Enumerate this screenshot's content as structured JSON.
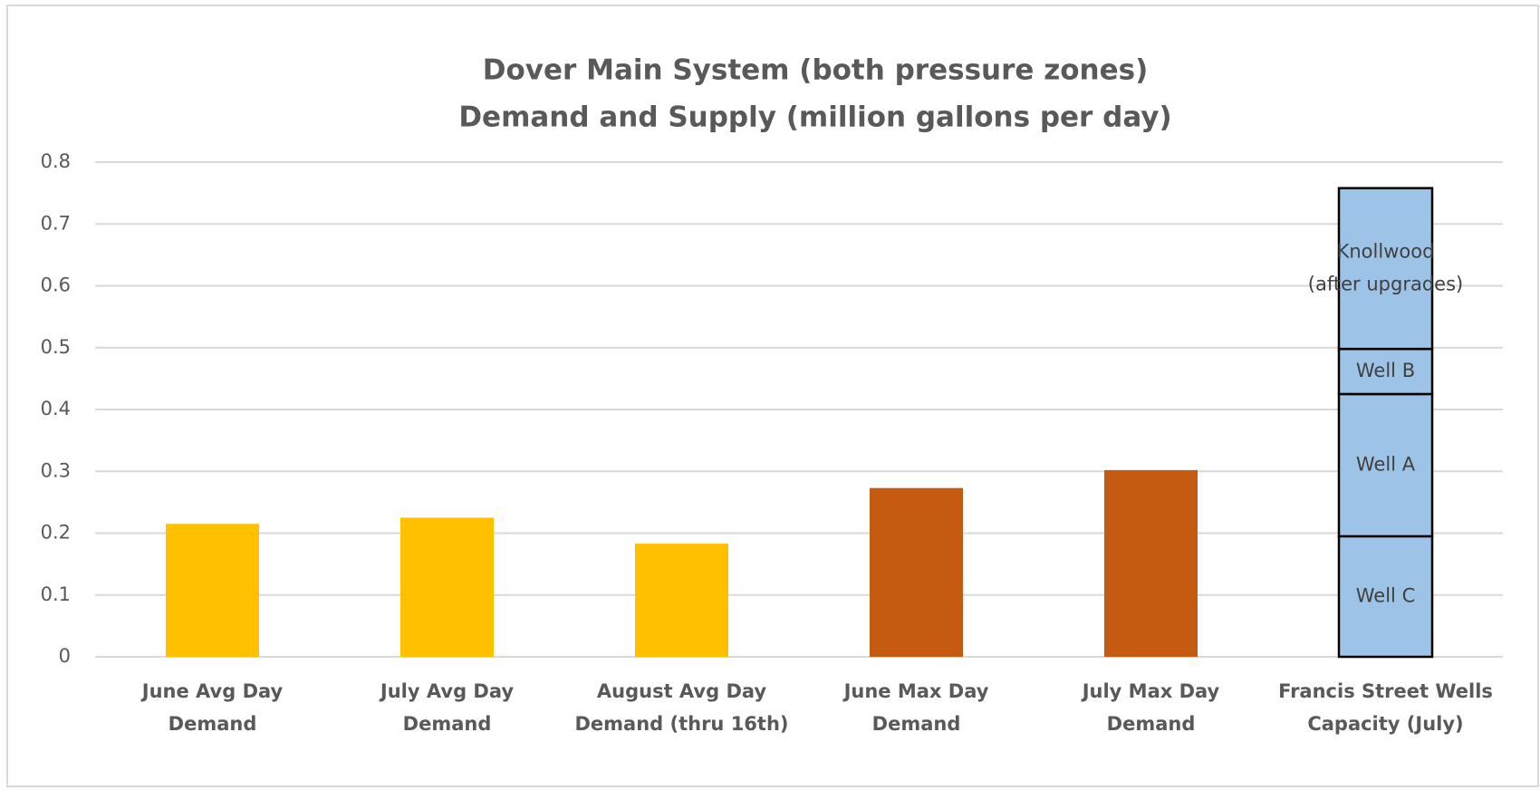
{
  "chart_data": {
    "type": "stacked_bar",
    "title": [
      "Dover Main System (both pressure zones)",
      "Demand and Supply (million gallons per day)"
    ],
    "categories": [
      [
        "June Avg Day",
        "Demand"
      ],
      [
        "July Avg Day",
        "Demand"
      ],
      [
        "August Avg Day",
        "Demand (thru 16th)"
      ],
      [
        "June Max Day",
        "Demand"
      ],
      [
        "July Max Day",
        "Demand"
      ],
      [
        "Francis Street Wells",
        "Capacity (July)"
      ]
    ],
    "series": [
      {
        "color": "#FFC000",
        "values": [
          0.215,
          0.225,
          0.183,
          null,
          null,
          null
        ]
      },
      {
        "color": "#C55A11",
        "values": [
          null,
          null,
          null,
          0.273,
          0.302,
          null
        ]
      },
      {
        "name": [
          "Well C"
        ],
        "color": "#9DC3E6",
        "outline": "#000000",
        "values": [
          null,
          null,
          null,
          null,
          null,
          0.195
        ]
      },
      {
        "name": [
          "Well A"
        ],
        "color": "#9DC3E6",
        "outline": "#000000",
        "values": [
          null,
          null,
          null,
          null,
          null,
          0.23
        ]
      },
      {
        "name": [
          "Well B"
        ],
        "color": "#9DC3E6",
        "outline": "#000000",
        "values": [
          null,
          null,
          null,
          null,
          null,
          0.073
        ]
      },
      {
        "name": [
          "Knollwood",
          "(after upgrades)"
        ],
        "color": "#9DC3E6",
        "outline": "#000000",
        "values": [
          null,
          null,
          null,
          null,
          null,
          0.26
        ]
      }
    ],
    "ylim": [
      0,
      0.8
    ],
    "yticks": [
      0,
      0.1,
      0.2,
      0.3,
      0.4,
      0.5,
      0.6,
      0.7,
      0.8
    ],
    "grid": true
  }
}
